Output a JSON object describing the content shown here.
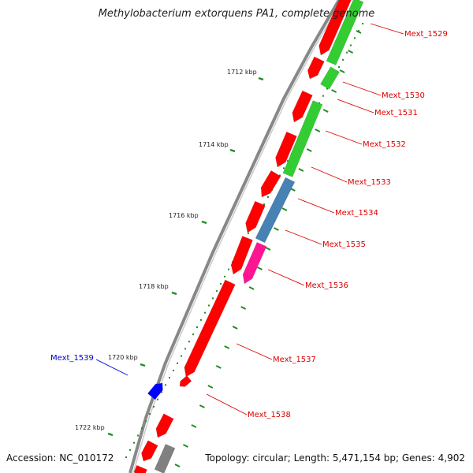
{
  "title": "Methylobacterium extorquens PA1, complete genome",
  "footer": {
    "accession": "Accession: NC_010172",
    "summary": "Topology: circular; Length: 5,471,154 bp; Genes: 4,902"
  },
  "colors": {
    "gene_red": "#ff0000",
    "gene_green": "#33cc33",
    "gene_blue_steel": "#4682b4",
    "gene_pink": "#ff1493",
    "gene_blue": "#0000ff",
    "gene_grey": "#808080",
    "label_red": "#dd0000",
    "label_blue": "#0000cc",
    "tick_green": "#228b22",
    "backbone": "#888888"
  },
  "scale_ticks": [
    {
      "label": "1712 kbp"
    },
    {
      "label": "1714 kbp"
    },
    {
      "label": "1716 kbp"
    },
    {
      "label": "1718 kbp"
    },
    {
      "label": "1720 kbp"
    },
    {
      "label": "1722 kbp"
    }
  ],
  "gene_labels": [
    {
      "name": "Mext_1529",
      "color": "red"
    },
    {
      "name": "Mext_1530",
      "color": "red"
    },
    {
      "name": "Mext_1531",
      "color": "red"
    },
    {
      "name": "Mext_1532",
      "color": "red"
    },
    {
      "name": "Mext_1533",
      "color": "red"
    },
    {
      "name": "Mext_1534",
      "color": "red"
    },
    {
      "name": "Mext_1535",
      "color": "red"
    },
    {
      "name": "Mext_1536",
      "color": "red"
    },
    {
      "name": "Mext_1537",
      "color": "red"
    },
    {
      "name": "Mext_1538",
      "color": "red"
    },
    {
      "name": "Mext_1539",
      "color": "blue"
    }
  ]
}
